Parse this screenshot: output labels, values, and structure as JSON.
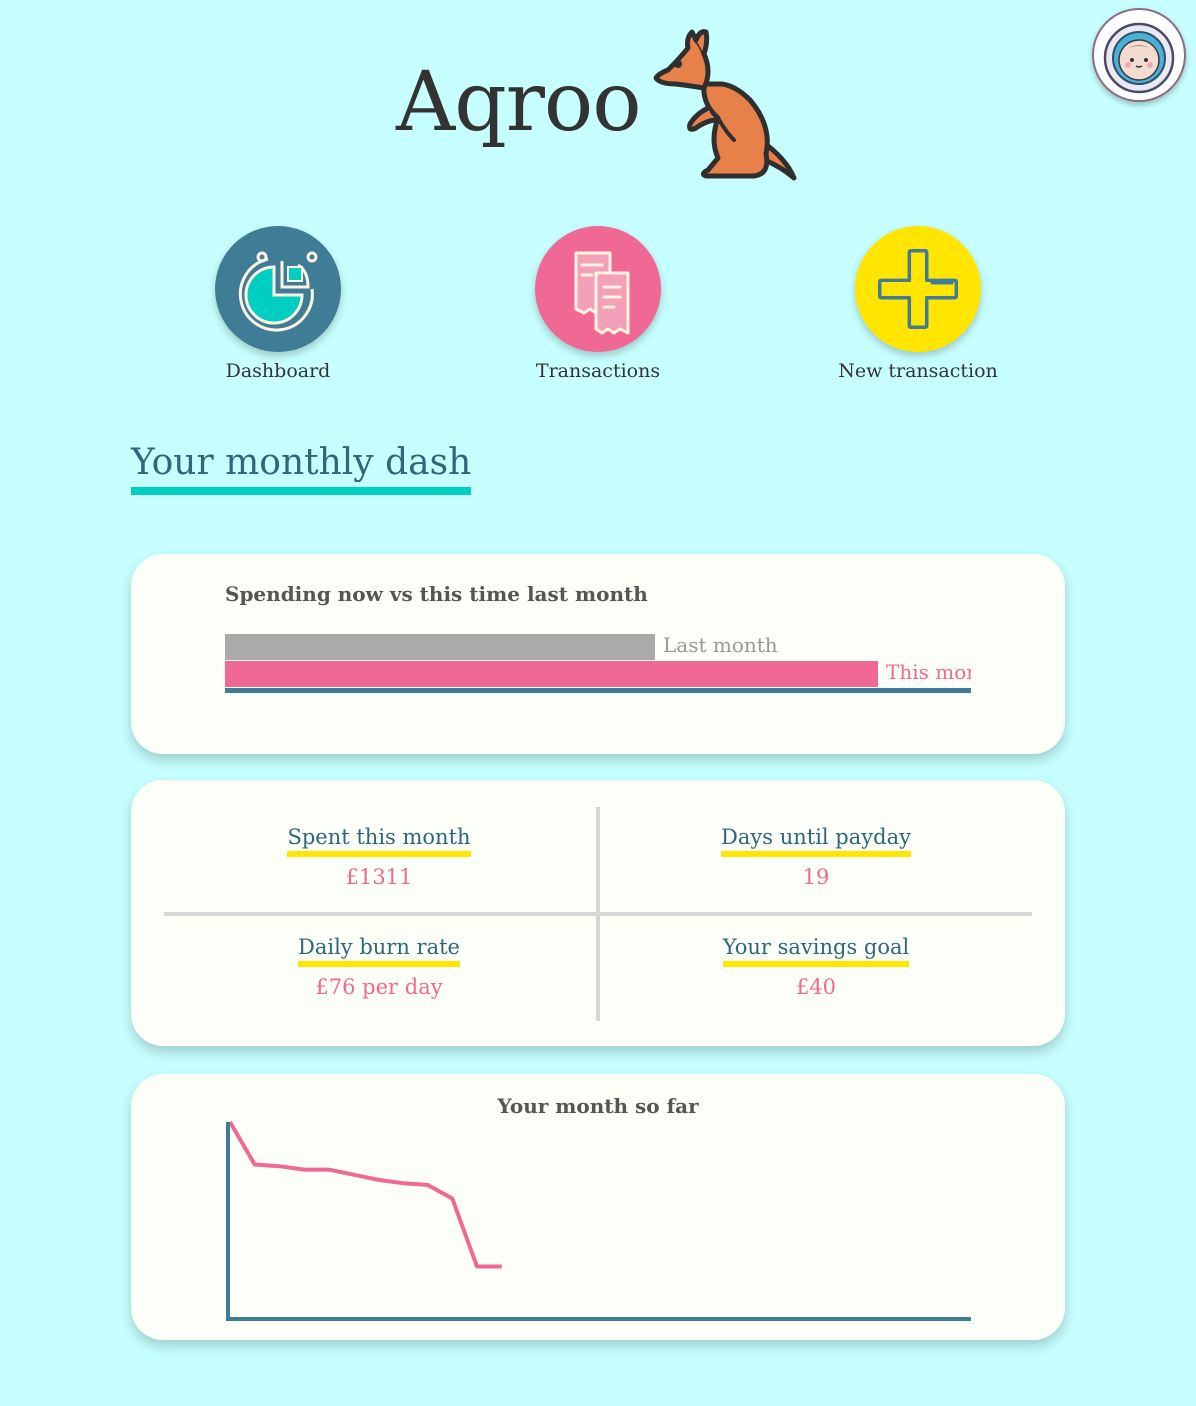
{
  "header": {
    "app_name": "Aqroo",
    "logo_icon": "kangaroo-icon",
    "avatar_icon": "astronaut-avatar-icon"
  },
  "nav": [
    {
      "label": "Dashboard",
      "icon": "pie-chart-icon",
      "color": "#3f7d97"
    },
    {
      "label": "Transactions",
      "icon": "receipts-icon",
      "color": "#f06894"
    },
    {
      "label": "New transaction",
      "icon": "plus-icon",
      "color": "#ffe500"
    }
  ],
  "page_title": "Your monthly dash",
  "comparison": {
    "title": "Spending now vs this time last month",
    "last_month_label": "Last month",
    "this_month_label": "This month",
    "last_month_fraction": 0.577,
    "this_month_fraction": 0.876,
    "colors": {
      "last_month": "#aaaaaa",
      "this_month": "#f06894",
      "axis": "#3f7d97"
    }
  },
  "stats": {
    "spent": {
      "label": "Spent this month",
      "value": "£1311"
    },
    "payday": {
      "label": "Days until payday",
      "value": "19"
    },
    "burn": {
      "label": "Daily burn rate",
      "value": "£76 per day"
    },
    "savings": {
      "label": "Your savings goal",
      "value": "£40"
    }
  },
  "chart_data": {
    "type": "line",
    "title": "Your month so far",
    "xlabel": "",
    "ylabel": "",
    "x": [
      0,
      1,
      2,
      3,
      4,
      5,
      6,
      7,
      8,
      9,
      10,
      11
    ],
    "values": [
      100,
      75,
      74,
      72,
      72,
      69,
      66,
      64,
      63,
      55,
      15,
      15
    ],
    "xlim": [
      0,
      30
    ],
    "ylim": [
      0,
      100
    ],
    "line_color": "#f06894",
    "axis_color": "#3f7d97"
  }
}
